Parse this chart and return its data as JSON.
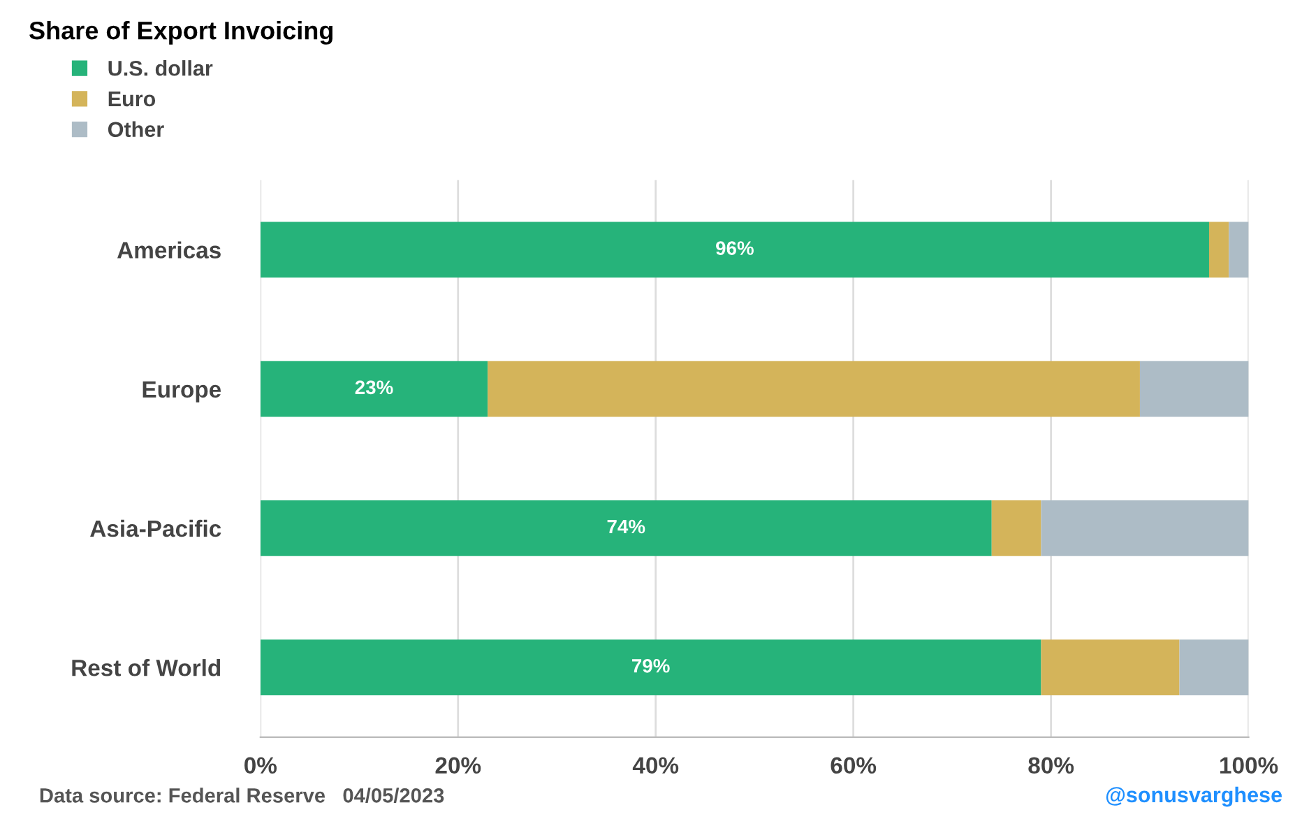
{
  "chart_data": {
    "type": "bar",
    "orientation": "horizontal",
    "stacked": true,
    "title": "Share of Export Invoicing",
    "categories": [
      "Americas",
      "Europe",
      "Asia-Pacific",
      "Rest of World"
    ],
    "series": [
      {
        "name": "U.S. dollar",
        "color": "#26b37a",
        "values": [
          96,
          23,
          74,
          79
        ],
        "value_labels": [
          "96%",
          "23%",
          "74%",
          "79%"
        ]
      },
      {
        "name": "Euro",
        "color": "#d4b45a",
        "values": [
          2,
          66,
          5,
          14
        ]
      },
      {
        "name": "Other",
        "color": "#adbcc6",
        "values": [
          2,
          11,
          21,
          7
        ]
      }
    ],
    "xlim": [
      0,
      100
    ],
    "xticks": [
      {
        "value": 0,
        "label": "0%"
      },
      {
        "value": 20,
        "label": "20%"
      },
      {
        "value": 40,
        "label": "40%"
      },
      {
        "value": 60,
        "label": "60%"
      },
      {
        "value": 80,
        "label": "80%"
      },
      {
        "value": 100,
        "label": "100%"
      }
    ],
    "grid": "x",
    "legend": "top left",
    "annotations": [
      "Data source: Federal Reserve   04/05/2023",
      "@sonusvarghese"
    ]
  }
}
